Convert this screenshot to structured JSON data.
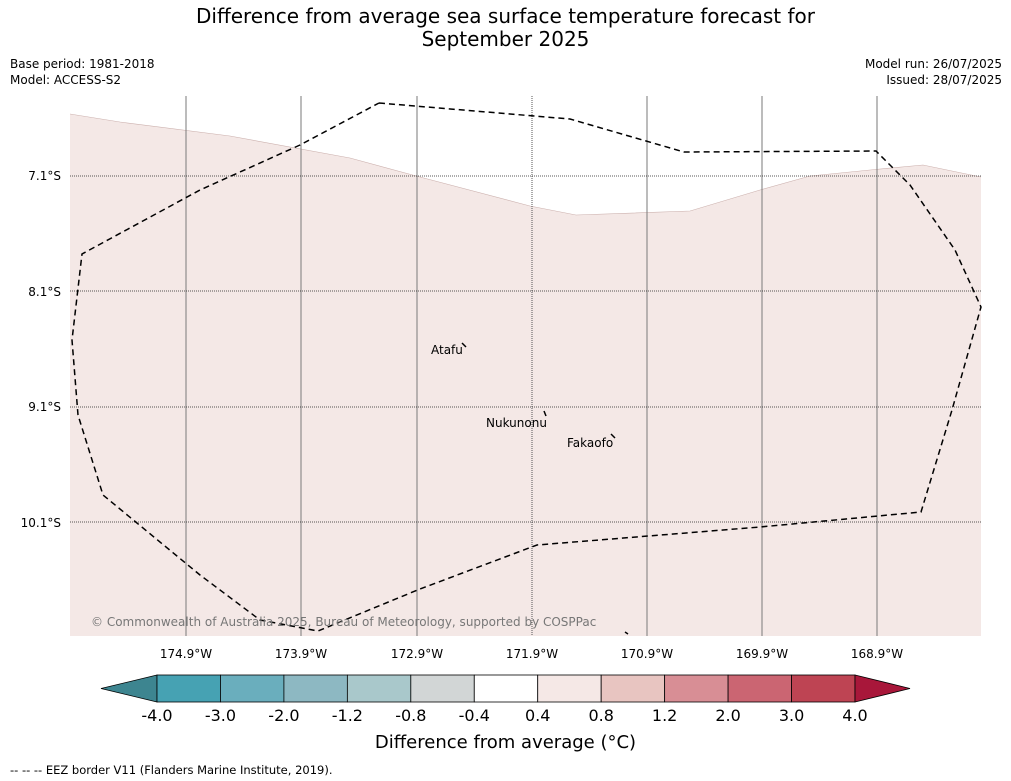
{
  "title_line1": "Difference from average sea surface temperature forecast for",
  "title_line2": "September 2025",
  "base_period": "Base period: 1981-2018",
  "model": "Model: ACCESS-S2",
  "model_run": "Model run: 26/07/2025",
  "issued": "Issued: 28/07/2025",
  "lat_labels": [
    "7.1°S",
    "8.1°S",
    "9.1°S",
    "10.1°S"
  ],
  "lon_labels": [
    "174.9°W",
    "173.9°W",
    "172.9°W",
    "171.9°W",
    "170.9°W",
    "169.9°W",
    "168.9°W"
  ],
  "places": [
    "Atafu",
    "Nukunonu",
    "Fakaofo"
  ],
  "copyright": "© Commonwealth of Australia 2025, Bureau of Meteorology, supported by COSPPac",
  "colorbar": {
    "ticks": [
      "-4.0",
      "-3.0",
      "-2.0",
      "-1.2",
      "-0.8",
      "-0.4",
      "0.4",
      "0.8",
      "1.2",
      "2.0",
      "3.0",
      "4.0"
    ],
    "colors": [
      "#46a2b3",
      "#6aaebd",
      "#8db8c2",
      "#a9c8cb",
      "#d2d6d6",
      "#ffffff",
      "#f5e8e6",
      "#e8c5c1",
      "#d88e95",
      "#cb6572",
      "#be4453"
    ],
    "under_color": "#3d8590",
    "over_color": "#a8173a",
    "label": "Difference from average (°C)"
  },
  "legend_text": "-- -- -- EEZ border V11 (Flanders Marine Institute, 2019).",
  "map_fill_color": "#f4e8e6"
}
